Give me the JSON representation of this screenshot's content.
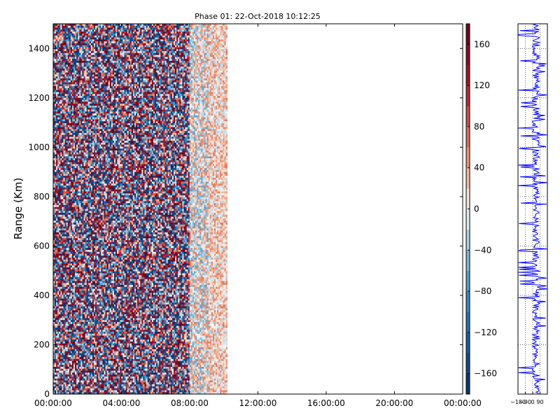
{
  "title": "Phase 01: 22-Oct-2018 10:12:25",
  "ylabel": "Range (Km)",
  "chart_data": [
    {
      "type": "heatmap",
      "title": "Phase 01: 22-Oct-2018 10:12:25",
      "ylabel": "Range (Km)",
      "xlabel": "",
      "x_range": [
        "00:00:00",
        "24:00:00"
      ],
      "xticks": [
        "00:00:00",
        "04:00:00",
        "08:00:00",
        "12:00:00",
        "16:00:00",
        "20:00:00",
        "00:00:00"
      ],
      "ylim": [
        0,
        1500
      ],
      "yticks": [
        0,
        200,
        400,
        600,
        800,
        1000,
        1200,
        1400
      ],
      "data_extent_hours": [
        0,
        10.2
      ],
      "colormap": "RdBu_r",
      "colorbar": {
        "range": [
          -180,
          180
        ],
        "ticks": [
          -160,
          -120,
          -80,
          -40,
          0,
          40,
          80,
          120,
          160
        ]
      }
    },
    {
      "type": "line",
      "title": "",
      "xticks": [
        -180,
        -90,
        0,
        90
      ],
      "xlim": [
        -180,
        180
      ],
      "ylim": [
        0,
        1500
      ],
      "series_color": "#0000ff",
      "grid": true
    }
  ],
  "colors": {
    "cmap_low": "#053061",
    "cmap_mid": "#f7f7f7",
    "cmap_high": "#67001f",
    "line": "#0000ff"
  }
}
